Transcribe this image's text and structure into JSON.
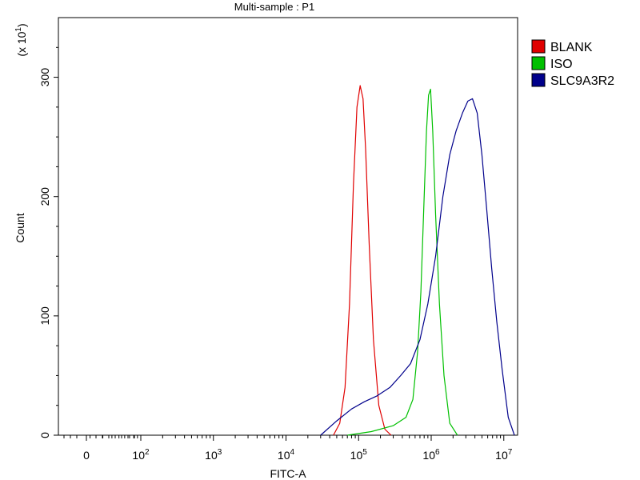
{
  "chart_data": {
    "type": "line",
    "title": "Multi-sample : P1",
    "xlabel": "FITC-A",
    "ylabel": "Count",
    "y_multiplier": {
      "base": "(x 10",
      "exp": "1",
      "close": ")"
    },
    "x_scale": "log",
    "ylim": [
      0,
      350
    ],
    "y_ticks": [
      0,
      100,
      200,
      300
    ],
    "y_tick_labels": [
      "0",
      "100",
      "200",
      "300"
    ],
    "x_ticks": [
      {
        "value": 0,
        "base": "0",
        "exp": ""
      },
      {
        "value": 100,
        "base": "10",
        "exp": "2"
      },
      {
        "value": 1000,
        "base": "10",
        "exp": "3"
      },
      {
        "value": 10000,
        "base": "10",
        "exp": "4"
      },
      {
        "value": 100000,
        "base": "10",
        "exp": "5"
      },
      {
        "value": 1000000,
        "base": "10",
        "exp": "6"
      },
      {
        "value": 10000000,
        "base": "10",
        "exp": "7"
      }
    ],
    "grid": false,
    "legend_position": "right",
    "series": [
      {
        "name": "BLANK",
        "color": "#e00000",
        "x": [
          45000,
          55000,
          65000,
          75000,
          85000,
          95000,
          105000,
          115000,
          125000,
          140000,
          160000,
          190000,
          230000,
          280000
        ],
        "y": [
          0,
          10,
          40,
          110,
          210,
          275,
          293,
          282,
          240,
          160,
          80,
          25,
          5,
          0
        ]
      },
      {
        "name": "ISO",
        "color": "#00c000",
        "x": [
          70000,
          150000,
          300000,
          450000,
          560000,
          650000,
          720000,
          790000,
          860000,
          920000,
          980000,
          1050000,
          1150000,
          1300000,
          1500000,
          1800000,
          2300000
        ],
        "y": [
          0,
          3,
          8,
          15,
          30,
          70,
          120,
          190,
          255,
          285,
          290,
          255,
          185,
          110,
          50,
          10,
          0
        ]
      },
      {
        "name": "SLC9A3R2",
        "color": "#00008b",
        "x": [
          30000,
          50000,
          80000,
          120000,
          180000,
          270000,
          380000,
          520000,
          700000,
          900000,
          1150000,
          1450000,
          1800000,
          2200000,
          2700000,
          3200000,
          3700000,
          4300000,
          5000000,
          5800000,
          6800000,
          8000000,
          9500000,
          11500000,
          14000000
        ],
        "y": [
          0,
          12,
          22,
          28,
          33,
          40,
          50,
          60,
          80,
          110,
          150,
          200,
          235,
          255,
          270,
          280,
          282,
          270,
          235,
          190,
          140,
          95,
          55,
          15,
          0
        ]
      }
    ]
  }
}
